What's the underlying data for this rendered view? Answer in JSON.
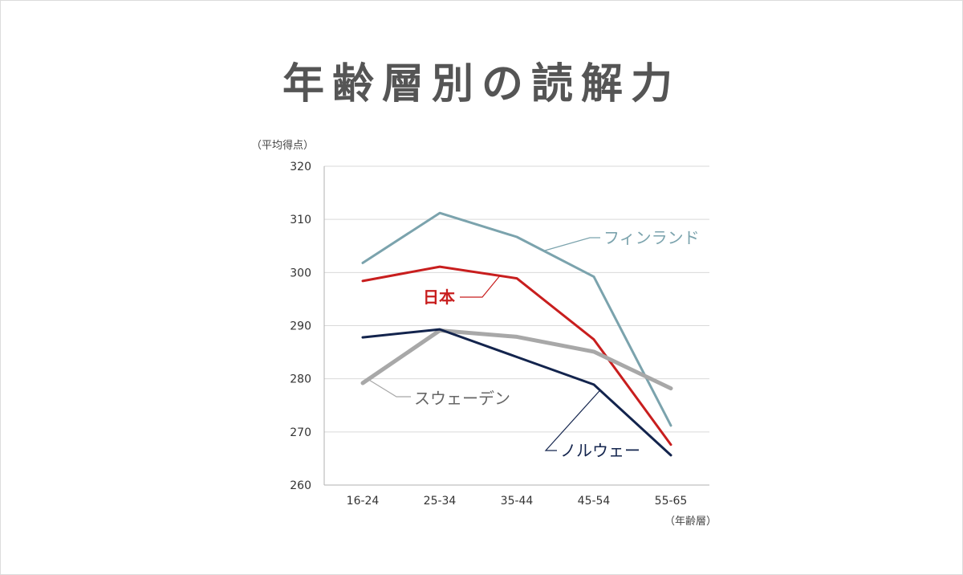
{
  "chart_data": {
    "type": "line",
    "title": "年齢層別の読解力",
    "ylabel": "（平均得点）",
    "xlabel": "（年齢層）",
    "categories": [
      "16-24",
      "25-34",
      "35-44",
      "45-54",
      "55-65"
    ],
    "ylim": [
      260,
      320
    ],
    "yticks": [
      260,
      270,
      280,
      290,
      300,
      310,
      320
    ],
    "grid": true,
    "series": [
      {
        "name": "フィンランド",
        "color": "#7ba3ad",
        "width": 3,
        "values": [
          301.8,
          311.2,
          306.7,
          299.2,
          271.2
        ]
      },
      {
        "name": "日本",
        "color": "#c81e1e",
        "width": 3,
        "values": [
          298.4,
          301.1,
          298.9,
          287.4,
          267.6
        ]
      },
      {
        "name": "スウェーデン",
        "color": "#a8a8a8",
        "width": 5,
        "values": [
          279.2,
          289.1,
          287.9,
          285.1,
          278.2
        ]
      },
      {
        "name": "ノルウェー",
        "color": "#13244d",
        "width": 3,
        "values": [
          287.8,
          289.3,
          284.1,
          278.9,
          265.6
        ]
      }
    ]
  }
}
